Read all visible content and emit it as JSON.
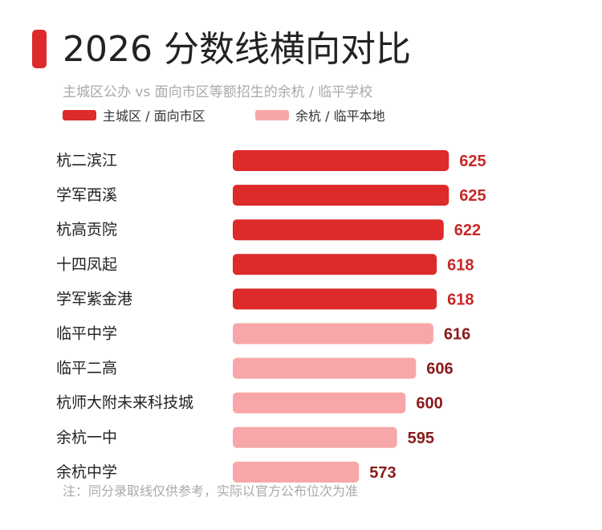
{
  "header": {
    "title": "2026 分数线横向对比",
    "subtitle": "主城区公办 vs 面向市区等额招生的余杭 / 临平学校"
  },
  "colors": {
    "accent": "#dd2a2a",
    "series_main": "#dd2a2a",
    "series_local": "#f7a7a7",
    "label_main": "#c62828",
    "label_local": "#8b1a1a"
  },
  "footnote": "注：同分录取线仅供参考，实际以官方公布位次为准",
  "chart_data": {
    "type": "bar",
    "orientation": "horizontal",
    "title": "2026 分数线横向对比",
    "subtitle": "主城区公办 vs 面向市区等额招生的余杭 / 临平学校",
    "xlim": [
      500,
      630
    ],
    "grid": false,
    "legend_position": "top-left",
    "legend": [
      {
        "name": "主城区 / 面向市区",
        "color": "#dd2a2a"
      },
      {
        "name": "余杭 / 临平本地",
        "color": "#f7a7a7"
      }
    ],
    "categories": [
      "杭二滨江",
      "学军西溪",
      "杭高贡院",
      "十四凤起",
      "学军紫金港",
      "临平中学",
      "临平二高",
      "杭师大附未来科技城",
      "余杭一中",
      "余杭中学"
    ],
    "values": [
      625,
      625,
      622,
      618,
      618,
      616,
      606,
      600,
      595,
      573
    ],
    "series_index": [
      0,
      0,
      0,
      0,
      0,
      1,
      1,
      1,
      1,
      1
    ],
    "data_labels": [
      "625",
      "625",
      "622",
      "618",
      "618",
      "616",
      "606",
      "600",
      "595",
      "573"
    ]
  }
}
